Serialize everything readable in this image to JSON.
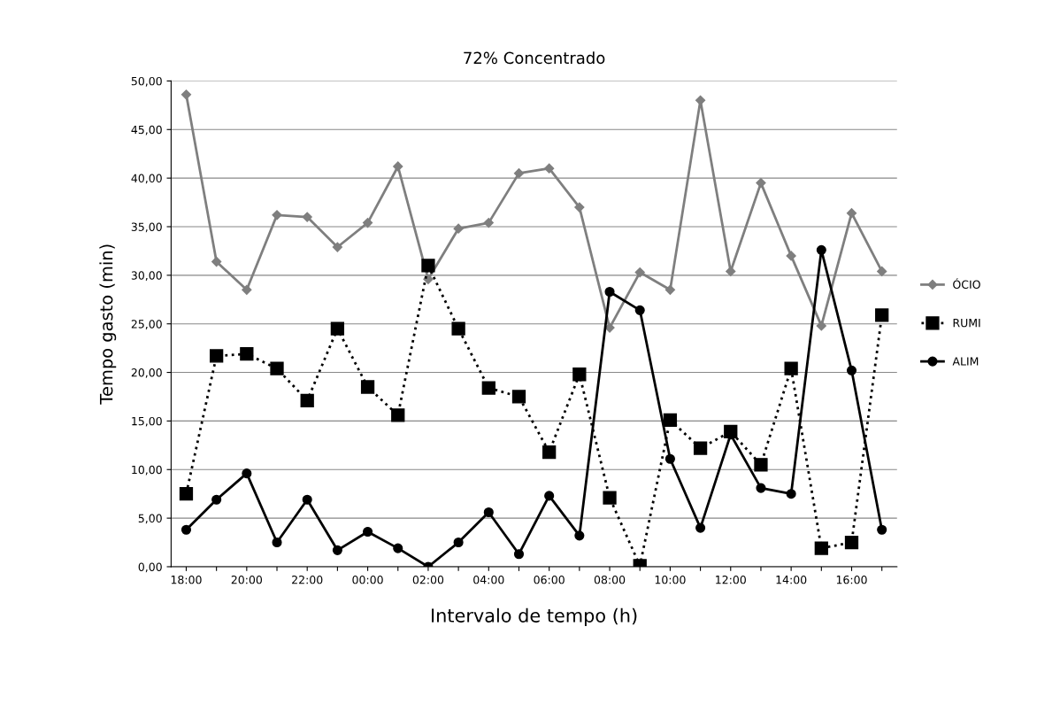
{
  "chart_data": {
    "type": "line",
    "title": "72% Concentrado",
    "xlabel": "Intervalo de tempo (h)",
    "ylabel": "Tempo gasto (min)",
    "categories": [
      "18:00",
      null,
      "20:00",
      null,
      "22:00",
      null,
      "00:00",
      null,
      "02:00",
      null,
      "04:00",
      null,
      "06:00",
      null,
      "08:00",
      null,
      "10:00",
      null,
      "12:00",
      null,
      "14:00",
      null,
      "16:00",
      null
    ],
    "series": [
      {
        "name": "ÓCIO",
        "color": "#7f7f7f",
        "marker": "diamond",
        "line_style": "solid",
        "values": [
          48.6,
          31.4,
          28.5,
          36.2,
          36.0,
          32.9,
          35.4,
          41.2,
          29.6,
          34.8,
          35.4,
          40.5,
          41.0,
          37.0,
          24.6,
          30.3,
          28.5,
          48.0,
          30.4,
          39.5,
          32.0,
          24.8,
          36.4,
          30.4
        ]
      },
      {
        "name": "RUMI",
        "color": "#000000",
        "marker": "square",
        "line_style": "dotted",
        "values": [
          7.5,
          21.7,
          21.9,
          20.4,
          17.1,
          24.5,
          18.5,
          15.6,
          31.0,
          24.5,
          18.4,
          17.5,
          11.8,
          19.8,
          7.1,
          0.1,
          15.1,
          12.2,
          13.9,
          10.5,
          20.4,
          1.9,
          2.5,
          25.9
        ]
      },
      {
        "name": "ALIM",
        "color": "#000000",
        "marker": "circle",
        "line_style": "solid",
        "values": [
          3.8,
          6.9,
          9.6,
          2.5,
          6.9,
          1.7,
          3.6,
          1.9,
          0.0,
          2.5,
          5.6,
          1.3,
          7.3,
          3.2,
          28.3,
          26.4,
          11.1,
          4.0,
          13.6,
          8.1,
          7.5,
          32.6,
          20.2,
          3.8
        ]
      }
    ],
    "ylim": [
      0,
      50
    ],
    "yticks": [
      {
        "value": 0,
        "label": "0,00"
      },
      {
        "value": 5,
        "label": "5,00"
      },
      {
        "value": 10,
        "label": "10,00"
      },
      {
        "value": 15,
        "label": "15,00"
      },
      {
        "value": 20,
        "label": "20,00"
      },
      {
        "value": 25,
        "label": "25,00"
      },
      {
        "value": 30,
        "label": "30,00"
      },
      {
        "value": 35,
        "label": "35,00"
      },
      {
        "value": 40,
        "label": "40,00"
      },
      {
        "value": 45,
        "label": "45,00"
      },
      {
        "value": 50,
        "label": "50,00"
      }
    ],
    "grid": "y",
    "legend": "right"
  }
}
